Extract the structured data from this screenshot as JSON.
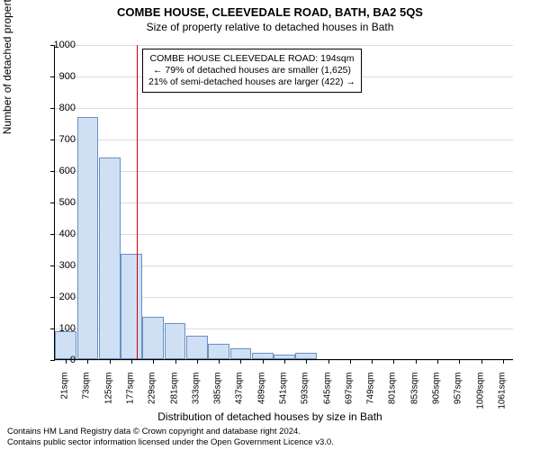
{
  "title": "COMBE HOUSE, CLEEVEDALE ROAD, BATH, BA2 5QS",
  "subtitle": "Size of property relative to detached houses in Bath",
  "chart": {
    "type": "histogram",
    "ylabel": "Number of detached properties",
    "xlabel": "Distribution of detached houses by size in Bath",
    "ylim": [
      0,
      1000
    ],
    "ytick_step": 100,
    "grid_color": "#dcdcdc",
    "bar_fill": "#cfe0f5",
    "bar_border": "#6a8fc2",
    "background": "#ffffff",
    "x_categories": [
      "21sqm",
      "73sqm",
      "125sqm",
      "177sqm",
      "229sqm",
      "281sqm",
      "333sqm",
      "385sqm",
      "437sqm",
      "489sqm",
      "541sqm",
      "593sqm",
      "645sqm",
      "697sqm",
      "749sqm",
      "801sqm",
      "853sqm",
      "905sqm",
      "957sqm",
      "1009sqm",
      "1061sqm"
    ],
    "values": [
      90,
      770,
      640,
      335,
      135,
      115,
      75,
      50,
      35,
      20,
      15,
      20,
      0,
      0,
      0,
      0,
      0,
      0,
      0,
      0,
      0
    ],
    "ref_line_x": 194,
    "ref_line_color": "#d40000",
    "x_range": [
      0,
      1087
    ],
    "info_box": {
      "line1": "COMBE HOUSE CLEEVEDALE ROAD: 194sqm",
      "line2": "← 79% of detached houses are smaller (1,625)",
      "line3": "21% of semi-detached houses are larger (422) →"
    }
  },
  "footer": {
    "line1": "Contains HM Land Registry data © Crown copyright and database right 2024.",
    "line2": "Contains public sector information licensed under the Open Government Licence v3.0."
  }
}
